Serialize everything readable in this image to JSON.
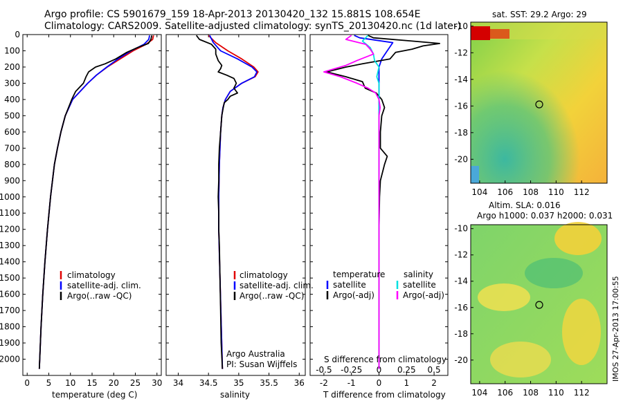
{
  "title": {
    "line1": "Argo profile: CS 5901679_159 18-Apr-2013 20130420_132 15.881S 108.654E",
    "line2": "Climatology: CARS2009. Satellite-adjusted climatology: synTS_20130420.nc (1d later)"
  },
  "colors": {
    "climatology": "#e00000",
    "satellite": "#0000ff",
    "argo": "#000000",
    "sal_satellite": "#00e0e0",
    "sal_argo": "#ff00ff"
  },
  "chart_data": [
    {
      "type": "line",
      "panel": "temperature",
      "xlabel": "temperature (deg C)",
      "ylabel": "",
      "xlim": [
        -1,
        31
      ],
      "ylim": [
        2100,
        0
      ],
      "xticks": [
        "0",
        "5",
        "10",
        "15",
        "20",
        "25",
        "30"
      ],
      "yticks": [
        "0",
        "100",
        "200",
        "300",
        "400",
        "500",
        "600",
        "700",
        "800",
        "900",
        "1000",
        "1100",
        "1200",
        "1300",
        "1400",
        "1500",
        "1600",
        "1700",
        "1800",
        "1900",
        "2000"
      ],
      "legend": [
        "climatology",
        "satellite-adj. clim.",
        "Argo(..raw -QC)"
      ],
      "series": [
        {
          "name": "climatology",
          "y": [
            5,
            30,
            60,
            100,
            150,
            200,
            250,
            300,
            400,
            500,
            600,
            700,
            800,
            1000,
            1200,
            1400,
            1600,
            1800,
            2000,
            2060
          ],
          "x": [
            29.2,
            29.0,
            27.5,
            24.5,
            21.5,
            18.5,
            16.0,
            14.0,
            10.5,
            8.8,
            7.8,
            7.0,
            6.3,
            5.4,
            4.7,
            4.1,
            3.6,
            3.2,
            2.9,
            2.8
          ]
        },
        {
          "name": "satellite-adj. clim.",
          "y": [
            5,
            30,
            60,
            100,
            150,
            200,
            250,
            300,
            400,
            500,
            600,
            700,
            800,
            1000,
            1200,
            1400,
            1600,
            1800,
            2000,
            2060
          ],
          "x": [
            28.3,
            28.1,
            27.0,
            24.0,
            21.0,
            18.4,
            16.0,
            14.0,
            10.5,
            8.8,
            7.8,
            7.0,
            6.3,
            5.4,
            4.7,
            4.1,
            3.6,
            3.2,
            2.9,
            2.8
          ]
        },
        {
          "name": "Argo(..raw -QC)",
          "y": [
            5,
            30,
            55,
            80,
            110,
            150,
            180,
            200,
            230,
            260,
            300,
            350,
            400,
            500,
            600,
            700,
            800,
            1000,
            1200,
            1400,
            1600,
            1800,
            2000,
            2060
          ],
          "x": [
            28.8,
            28.6,
            28.0,
            25.5,
            23.0,
            20.5,
            18.0,
            15.8,
            14.2,
            13.6,
            13.0,
            11.2,
            10.3,
            8.8,
            7.8,
            7.0,
            6.3,
            5.4,
            4.7,
            4.1,
            3.6,
            3.2,
            2.9,
            2.8
          ]
        }
      ]
    },
    {
      "type": "line",
      "panel": "salinity",
      "xlabel": "salinity",
      "xlim": [
        33.8,
        36.1
      ],
      "ylim": [
        2100,
        0
      ],
      "xticks": [
        "34",
        "34.5",
        "35",
        "35.5",
        "36"
      ],
      "legend": [
        "climatology",
        "satellite-adj. clim.",
        "Argo(..raw -QC)"
      ],
      "annotation": [
        "Argo Australia",
        "PI: Susan Wijffels"
      ],
      "series": [
        {
          "name": "climatology",
          "y": [
            5,
            50,
            100,
            150,
            200,
            230,
            260,
            300,
            350,
            400,
            450,
            500,
            600,
            800,
            1000,
            1200,
            1500,
            2060
          ],
          "x": [
            34.5,
            34.62,
            34.82,
            35.05,
            35.25,
            35.32,
            35.27,
            35.05,
            34.86,
            34.78,
            34.74,
            34.72,
            34.7,
            34.68,
            34.67,
            34.67,
            34.69,
            34.73
          ]
        },
        {
          "name": "satellite-adj. clim.",
          "y": [
            5,
            50,
            100,
            150,
            200,
            230,
            260,
            300,
            350,
            400,
            450,
            500,
            600,
            800,
            1000,
            1200,
            1500,
            2060
          ],
          "x": [
            34.52,
            34.58,
            34.7,
            34.98,
            35.22,
            35.3,
            35.26,
            35.05,
            34.86,
            34.78,
            34.74,
            34.72,
            34.7,
            34.68,
            34.67,
            34.67,
            34.69,
            34.73
          ]
        },
        {
          "name": "Argo(..raw -QC)",
          "y": [
            5,
            30,
            60,
            90,
            120,
            160,
            190,
            210,
            230,
            250,
            270,
            300,
            330,
            360,
            380,
            400,
            420,
            460,
            500,
            600,
            700,
            800,
            900,
            1000,
            1100,
            1200,
            1300,
            1500,
            1700,
            1900,
            2060
          ],
          "x": [
            34.3,
            34.35,
            34.55,
            34.62,
            34.62,
            34.66,
            34.72,
            34.7,
            34.66,
            34.8,
            34.92,
            34.96,
            34.92,
            34.98,
            34.86,
            34.82,
            34.76,
            34.74,
            34.72,
            34.7,
            34.68,
            34.67,
            34.67,
            34.66,
            34.67,
            34.67,
            34.68,
            34.69,
            34.7,
            34.71,
            34.73
          ]
        }
      ]
    },
    {
      "type": "line",
      "panel": "differences",
      "xlabel": "T difference from climatology",
      "xlabel_top": "S difference from climatology",
      "xlim": [
        -2.5,
        2.5
      ],
      "ylim": [
        2100,
        0
      ],
      "xticks": [
        "-2",
        "-1",
        "0",
        "1",
        "2"
      ],
      "xticks_top": [
        "-0.5",
        "-0.25",
        "0",
        "0.25",
        "0.5"
      ],
      "legend_temperature": [
        "temperature",
        "satellite",
        "Argo(-adj)"
      ],
      "legend_salinity": [
        "salinity",
        "satellite",
        "Argo(-adj)"
      ],
      "series": [
        {
          "name": "temperature satellite",
          "y": [
            5,
            20,
            50,
            100,
            150,
            200,
            300,
            400,
            600,
            1000,
            2060
          ],
          "x": [
            -0.9,
            -0.7,
            0.5,
            0.3,
            0.1,
            0.0,
            0.0,
            0.0,
            0.0,
            0.0,
            0.0
          ]
        },
        {
          "name": "temperature Argo(-adj)",
          "y": [
            5,
            20,
            40,
            55,
            70,
            90,
            110,
            150,
            180,
            200,
            230,
            260,
            290,
            330,
            360,
            400,
            450,
            500,
            600,
            700,
            750,
            800,
            900,
            1000,
            1200,
            1400,
            1600,
            1800,
            2000,
            2060
          ],
          "x": [
            -0.4,
            -0.2,
            1.2,
            2.2,
            1.6,
            1.2,
            0.6,
            0.4,
            -0.6,
            -1.2,
            -1.9,
            -1.2,
            -0.6,
            -0.5,
            -0.1,
            0.1,
            0.2,
            0.1,
            0.05,
            0.05,
            0.3,
            0.2,
            0.05,
            0.02,
            0.0,
            0.0,
            0.0,
            0.0,
            0.0,
            0.0
          ]
        },
        {
          "name": "salinity satellite",
          "y": [
            5,
            40,
            80,
            120,
            160,
            200,
            260,
            300,
            400,
            600,
            1000,
            2060
          ],
          "x": [
            -0.1,
            -0.15,
            -0.08,
            -0.05,
            -0.04,
            0.0,
            -0.02,
            0.0,
            0.0,
            0.0,
            0.0,
            0.0
          ]
        },
        {
          "name": "salinity Argo(-adj)",
          "y": [
            5,
            30,
            60,
            90,
            120,
            160,
            190,
            210,
            230,
            260,
            300,
            330,
            360,
            400,
            450,
            500,
            600,
            1000,
            2060
          ],
          "x": [
            -0.25,
            -0.3,
            -0.12,
            -0.08,
            -0.05,
            -0.2,
            -0.3,
            -0.4,
            -0.5,
            -0.35,
            -0.2,
            -0.1,
            -0.03,
            0.0,
            0.01,
            0.0,
            0.0,
            0.0,
            0.0
          ]
        }
      ]
    },
    {
      "type": "heatmap",
      "panel": "sst-map",
      "title": "sat. SST: 29.2 Argo: 29",
      "xticks": [
        "104",
        "106",
        "108",
        "110",
        "112"
      ],
      "yticks": [
        "-10",
        "-12",
        "-14",
        "-16",
        "-18",
        "-20"
      ],
      "argo_position": {
        "lon": 108.654,
        "lat": -15.881
      }
    },
    {
      "type": "heatmap",
      "panel": "sla-map",
      "title_line1": "Altim. SLA: 0.016",
      "title_line2": "Argo h1000: 0.037 h2000: 0.031",
      "xticks": [
        "104",
        "106",
        "108",
        "110",
        "112"
      ],
      "yticks": [
        "-10",
        "-12",
        "-14",
        "-16",
        "-18",
        "-20"
      ],
      "argo_position": {
        "lon": 108.654,
        "lat": -15.881
      }
    }
  ],
  "stamp": "IMOS 27-Apr-2013 17:00:55"
}
